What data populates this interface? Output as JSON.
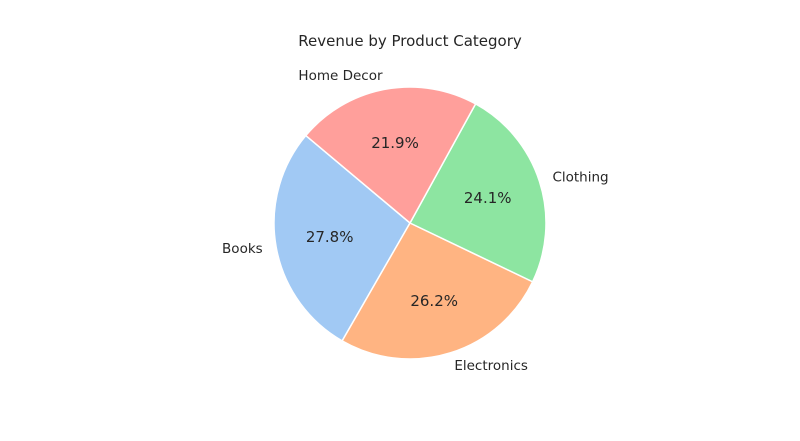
{
  "chart_data": {
    "type": "pie",
    "title": "Revenue by Product Category",
    "categories": [
      "Books",
      "Electronics",
      "Clothing",
      "Home Decor"
    ],
    "values": [
      27.8,
      26.2,
      24.1,
      21.9
    ],
    "labels": [
      "27.8%",
      "26.2%",
      "24.1%",
      "21.9%"
    ],
    "colors": [
      "#a1c9f4",
      "#ffb482",
      "#8de5a1",
      "#ff9f9b"
    ],
    "start_angle_deg": 140,
    "direction": "counterclockwise"
  }
}
